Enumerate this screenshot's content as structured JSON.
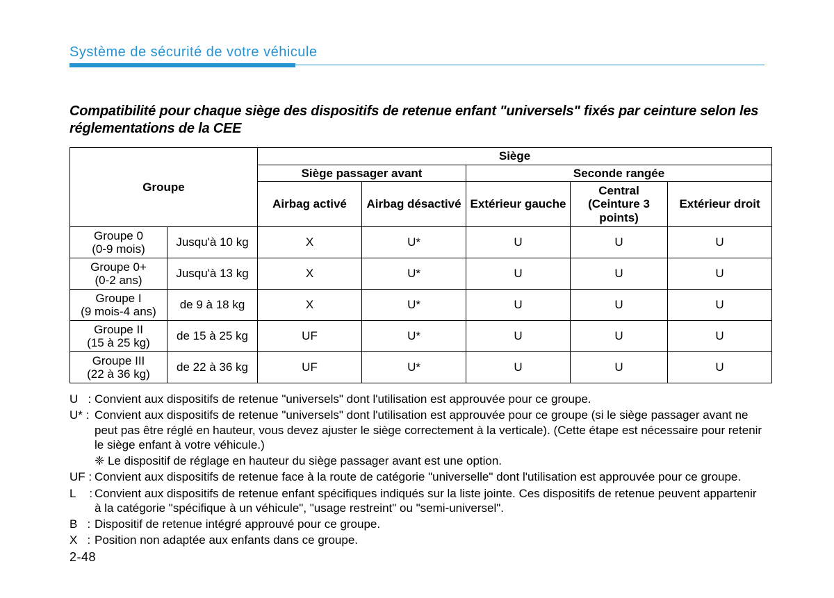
{
  "header": {
    "title": "Système de sécurité de votre véhicule"
  },
  "subheading": "Compatibilité pour chaque siège des dispositifs de retenue enfant \"universels\" fixés par ceinture selon les réglementations de la CEE",
  "table": {
    "top_header": "Siège",
    "group_header": "Groupe",
    "front_header": "Siège passager avant",
    "rear_header": "Seconde rangée",
    "cols": {
      "c1": "Airbag activé",
      "c2": "Airbag désactivé",
      "c3": "Extérieur gauche",
      "c4": "Central (Ceinture 3 points)",
      "c5": "Extérieur droit"
    },
    "rows": [
      {
        "name": "Groupe 0",
        "sub": "(0-9  mois)",
        "wt": "Jusqu'à 10  kg",
        "v": [
          "X",
          "U*",
          "U",
          "U",
          "U"
        ]
      },
      {
        "name": "Groupe 0+",
        "sub": "(0-2  ans)",
        "wt": "Jusqu'à 13  kg",
        "v": [
          "X",
          "U*",
          "U",
          "U",
          "U"
        ]
      },
      {
        "name": "Groupe  I",
        "sub": "(9  mois-4  ans)",
        "wt": "de 9 à 18  kg",
        "v": [
          "X",
          "U*",
          "U",
          "U",
          "U"
        ]
      },
      {
        "name": "Groupe II",
        "sub": "(15 à 25  kg)",
        "wt": "de 15 à 25  kg",
        "v": [
          "UF",
          "U*",
          "U",
          "U",
          "U"
        ]
      },
      {
        "name": "Groupe III",
        "sub": "(22 à 36  kg)",
        "wt": "de 22 à 36  kg",
        "v": [
          "UF",
          "U*",
          "U",
          "U",
          "U"
        ]
      }
    ]
  },
  "legend": {
    "U": "Convient aux dispositifs de retenue \"universels\" dont l'utilisation est approuvée pour ce groupe.",
    "Ustar": "Convient aux dispositifs de retenue \"universels\" dont l'utilisation est approuvée pour ce groupe (si le siège passager avant ne peut pas être réglé en hauteur, vous devez ajuster le siège correctement à la verticale). (Cette étape est nécessaire pour retenir le siège enfant à votre véhicule.)",
    "note": "❈ Le dispositif de réglage en hauteur du siège passager avant est une option.",
    "UF": "Convient aux dispositifs de retenue face à la route de catégorie \"universelle\" dont l'utilisation est approuvée pour ce groupe.",
    "L": "Convient aux dispositifs de retenue enfant spécifiques indiqués sur la liste jointe. Ces dispositifs de retenue peuvent appartenir à la catégorie \"spécifique à un véhicule\",  \"usage restreint\" ou \"semi-universel\".",
    "B": "Dispositif de retenue intégré approuvé pour ce groupe.",
    "X": "Position non adaptée aux enfants dans ce groupe."
  },
  "page_number": "2-48"
}
